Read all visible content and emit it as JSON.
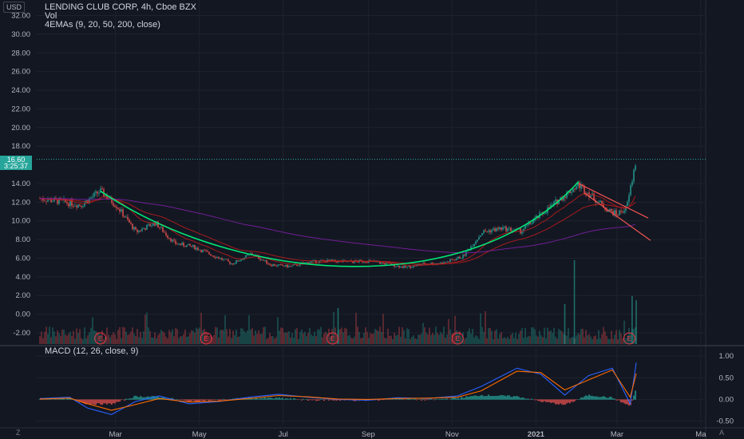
{
  "header": {
    "title": "LENDING CLUB CORP, 4h, Cboe BZX",
    "vol_label": "Vol",
    "ema_label": "4EMAs (9, 20, 50, 200, close)",
    "currency": "USD",
    "macd_label": "MACD (12, 26, close, 9)"
  },
  "price_tag": {
    "value": "16.60",
    "countdown": "3:25:37"
  },
  "buttons": {
    "z": "Z",
    "a": "A"
  },
  "colors": {
    "background": "#131722",
    "grid": "#1e222d",
    "up": "#26a69a",
    "down": "#ef5350",
    "ema_red": "#b71c1c",
    "ema_purple": "#7b1fa2",
    "cup": "#00e676",
    "channel": "#ef5350",
    "macd": "#2962ff",
    "signal": "#ff6d00"
  },
  "chart_data": [
    {
      "type": "candlestick",
      "title": "LENDING CLUB CORP, 4h, Cboe BZX",
      "x_tick_labels": [
        "Mar",
        "May",
        "Jul",
        "Sep",
        "Nov",
        "2021",
        "Mar",
        "Ma"
      ],
      "y_tick_labels": [
        "32.00",
        "30.00",
        "28.00",
        "26.00",
        "24.00",
        "22.00",
        "20.00",
        "18.00",
        "14.00",
        "12.00",
        "10.00",
        "8.00",
        "6.00",
        "4.00",
        "2.00",
        "0.00",
        "-2.00"
      ],
      "ylim": [
        -3.2,
        33.5
      ],
      "last_price": 16.6,
      "price_path": [
        [
          "2020-01-06",
          12.4
        ],
        [
          "2020-01-20",
          12.1
        ],
        [
          "2020-02-05",
          11.7
        ],
        [
          "2020-02-19",
          13.2
        ],
        [
          "2020-03-02",
          11.6
        ],
        [
          "2020-03-16",
          8.8
        ],
        [
          "2020-03-30",
          9.8
        ],
        [
          "2020-04-13",
          7.6
        ],
        [
          "2020-04-27",
          7.2
        ],
        [
          "2020-05-11",
          6.3
        ],
        [
          "2020-05-25",
          5.4
        ],
        [
          "2020-06-08",
          6.5
        ],
        [
          "2020-06-22",
          5.3
        ],
        [
          "2020-07-06",
          5.1
        ],
        [
          "2020-07-20",
          5.6
        ],
        [
          "2020-08-03",
          5.7
        ],
        [
          "2020-08-17",
          5.6
        ],
        [
          "2020-08-31",
          5.7
        ],
        [
          "2020-09-14",
          5.4
        ],
        [
          "2020-09-28",
          5.0
        ],
        [
          "2020-10-12",
          5.4
        ],
        [
          "2020-10-26",
          5.5
        ],
        [
          "2020-11-09",
          6.2
        ],
        [
          "2020-11-23",
          8.8
        ],
        [
          "2020-12-07",
          9.2
        ],
        [
          "2020-12-21",
          8.9
        ],
        [
          "2021-01-04",
          10.6
        ],
        [
          "2021-01-18",
          12.3
        ],
        [
          "2021-02-01",
          13.9
        ],
        [
          "2021-02-08",
          13.0
        ],
        [
          "2021-02-22",
          11.2
        ],
        [
          "2021-03-01",
          10.7
        ],
        [
          "2021-03-08",
          11.4
        ],
        [
          "2021-03-15",
          16.6
        ]
      ],
      "earnings_markers": 5,
      "indicators": [
        "Vol",
        "4EMAs (9, 20, 50, 200, close)"
      ],
      "drawings": [
        "cup curve",
        "descending channel"
      ]
    },
    {
      "type": "line",
      "title": "MACD (12, 26, close, 9)",
      "y_tick_labels": [
        "1.00",
        "0.50",
        "0.00",
        "-0.50"
      ],
      "ylim": [
        -0.6,
        1.15
      ],
      "series": [
        {
          "name": "MACD",
          "points": [
            [
              0,
              0.02
            ],
            [
              0.05,
              0.05
            ],
            [
              0.08,
              -0.2
            ],
            [
              0.12,
              -0.35
            ],
            [
              0.16,
              -0.05
            ],
            [
              0.2,
              0.08
            ],
            [
              0.25,
              -0.1
            ],
            [
              0.3,
              -0.05
            ],
            [
              0.35,
              0.05
            ],
            [
              0.4,
              0.12
            ],
            [
              0.45,
              0.05
            ],
            [
              0.5,
              0.0
            ],
            [
              0.55,
              -0.02
            ],
            [
              0.6,
              0.04
            ],
            [
              0.65,
              0.02
            ],
            [
              0.7,
              0.08
            ],
            [
              0.74,
              0.3
            ],
            [
              0.8,
              0.72
            ],
            [
              0.84,
              0.58
            ],
            [
              0.88,
              0.1
            ],
            [
              0.92,
              0.55
            ],
            [
              0.96,
              0.72
            ],
            [
              0.99,
              -0.1
            ],
            [
              1.0,
              0.85
            ]
          ]
        },
        {
          "name": "Signal",
          "points": [
            [
              0,
              0.01
            ],
            [
              0.05,
              0.03
            ],
            [
              0.08,
              -0.1
            ],
            [
              0.12,
              -0.25
            ],
            [
              0.16,
              -0.12
            ],
            [
              0.2,
              0.02
            ],
            [
              0.25,
              -0.06
            ],
            [
              0.3,
              -0.04
            ],
            [
              0.35,
              0.02
            ],
            [
              0.4,
              0.09
            ],
            [
              0.45,
              0.06
            ],
            [
              0.5,
              0.01
            ],
            [
              0.55,
              0.0
            ],
            [
              0.6,
              0.02
            ],
            [
              0.65,
              0.03
            ],
            [
              0.7,
              0.05
            ],
            [
              0.74,
              0.2
            ],
            [
              0.8,
              0.65
            ],
            [
              0.84,
              0.62
            ],
            [
              0.88,
              0.22
            ],
            [
              0.92,
              0.45
            ],
            [
              0.96,
              0.68
            ],
            [
              0.99,
              0.05
            ],
            [
              1.0,
              0.6
            ]
          ]
        }
      ]
    }
  ]
}
